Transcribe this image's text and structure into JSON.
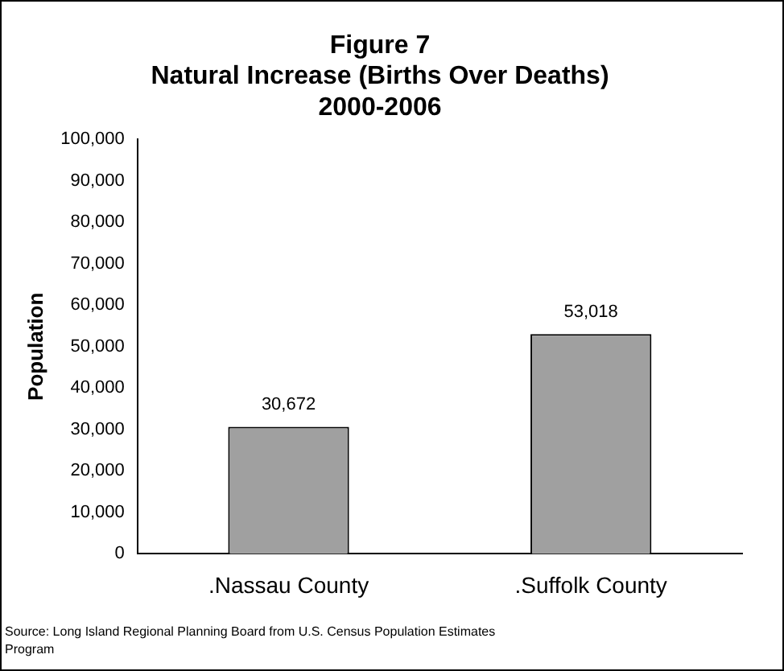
{
  "chart_data": {
    "type": "bar",
    "title": "Figure 7\nNatural Increase (Births Over Deaths)\n2000-2006",
    "ylabel": "Population",
    "categories": [
      ".Nassau County",
      ".Suffolk County"
    ],
    "values": [
      30672,
      53018
    ],
    "value_labels": [
      "30,672",
      "53,018"
    ],
    "color": "#a0a0a0",
    "ylim": [
      0,
      100000
    ],
    "yticks": [
      {
        "value": 0,
        "label": "0"
      },
      {
        "value": 10000,
        "label": "10,000"
      },
      {
        "value": 20000,
        "label": "20,000"
      },
      {
        "value": 30000,
        "label": "30,000"
      },
      {
        "value": 40000,
        "label": "40,000"
      },
      {
        "value": 50000,
        "label": "50,000"
      },
      {
        "value": 60000,
        "label": "60,000"
      },
      {
        "value": 70000,
        "label": "70,000"
      },
      {
        "value": 80000,
        "label": "80,000"
      },
      {
        "value": 90000,
        "label": "90,000"
      },
      {
        "value": 100000,
        "label": "100,000"
      }
    ],
    "grid": false,
    "legend": false,
    "annotations": [
      "Source: Long Island Regional Planning Board from U.S. Census Population Estimates Program"
    ]
  }
}
